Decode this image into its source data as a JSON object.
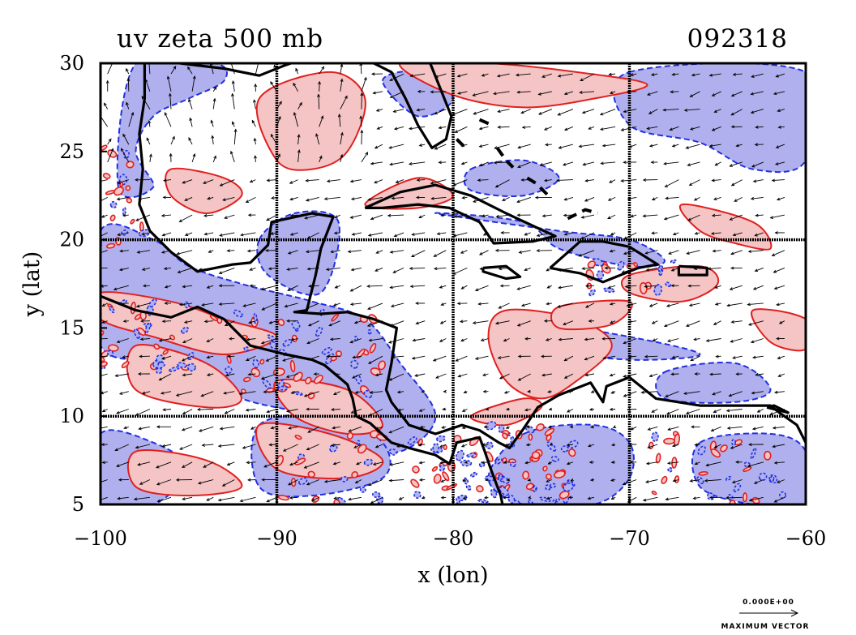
{
  "title_left": "uv zeta 500 mb",
  "title_right": "092318",
  "x_axis": {
    "label": "x (lon)",
    "range": [
      -100,
      -60
    ],
    "ticks": [
      {
        "value": -100,
        "label": "−100"
      },
      {
        "value": -90,
        "label": "−90"
      },
      {
        "value": -80,
        "label": "−80"
      },
      {
        "value": -70,
        "label": "−70"
      },
      {
        "value": -60,
        "label": "−60"
      }
    ]
  },
  "y_axis": {
    "label": "y (lat)",
    "range": [
      5,
      30
    ],
    "ticks": [
      {
        "value": 5,
        "label": "5"
      },
      {
        "value": 10,
        "label": "10"
      },
      {
        "value": 15,
        "label": "15"
      },
      {
        "value": 20,
        "label": "20"
      },
      {
        "value": 25,
        "label": "25"
      },
      {
        "value": 30,
        "label": "30"
      }
    ]
  },
  "grid_lines": {
    "lon": [
      -90,
      -80,
      -70
    ],
    "lat": [
      10,
      20
    ]
  },
  "legend": {
    "top_text": "0.000E+00",
    "bottom_text": "MAXIMUM VECTOR"
  },
  "colors": {
    "positive_fill": "#f5c4c4",
    "positive_line": "#e02020",
    "negative_fill": "#b0b0ee",
    "negative_line": "#2030e0",
    "coast": "#000000",
    "vector": "#000000"
  },
  "regions": {
    "negative": [
      [
        [
          -100,
          20.5
        ],
        [
          -97,
          20
        ],
        [
          -95,
          18.5
        ],
        [
          -92,
          17.5
        ],
        [
          -90,
          17
        ],
        [
          -88,
          16.5
        ],
        [
          -85,
          15.5
        ],
        [
          -83,
          13
        ],
        [
          -81,
          10
        ],
        [
          -83,
          8
        ],
        [
          -86,
          8.5
        ],
        [
          -88,
          10
        ],
        [
          -92,
          11
        ],
        [
          -96,
          13
        ],
        [
          -100,
          14
        ]
      ],
      [
        [
          -98,
          30
        ],
        [
          -93.5,
          30
        ],
        [
          -93,
          29
        ],
        [
          -95,
          28
        ],
        [
          -97,
          27
        ],
        [
          -98,
          25
        ],
        [
          -97,
          23
        ],
        [
          -99,
          23
        ]
      ],
      [
        [
          -91,
          20
        ],
        [
          -89,
          21.5
        ],
        [
          -86.5,
          21
        ],
        [
          -87.5,
          17
        ],
        [
          -90.5,
          18
        ]
      ],
      [
        [
          -70,
          29.5
        ],
        [
          -60,
          29.5
        ],
        [
          -60,
          24.5
        ],
        [
          -63,
          24
        ],
        [
          -66,
          25.5
        ],
        [
          -70,
          26.5
        ]
      ],
      [
        [
          -81,
          21.5
        ],
        [
          -76,
          21
        ],
        [
          -74,
          19.5
        ],
        [
          -70,
          18.5
        ],
        [
          -68,
          18.8
        ],
        [
          -70,
          20
        ],
        [
          -74,
          20.5
        ]
      ],
      [
        [
          -79,
          24
        ],
        [
          -76,
          24.5
        ],
        [
          -74,
          23.5
        ],
        [
          -76,
          22.5
        ],
        [
          -79,
          22.8
        ]
      ],
      [
        [
          -84,
          29
        ],
        [
          -82,
          29.5
        ],
        [
          -80,
          28
        ],
        [
          -82,
          27
        ]
      ],
      [
        [
          -100,
          9
        ],
        [
          -97,
          8.5
        ],
        [
          -95,
          7
        ],
        [
          -97,
          5
        ],
        [
          -100,
          5
        ]
      ],
      [
        [
          -91,
          9.5
        ],
        [
          -87,
          10
        ],
        [
          -84,
          8.5
        ],
        [
          -84,
          6.5
        ],
        [
          -88,
          5.5
        ],
        [
          -91,
          6
        ]
      ],
      [
        [
          -76,
          9
        ],
        [
          -72,
          9.5
        ],
        [
          -70,
          8.5
        ],
        [
          -70,
          6.5
        ],
        [
          -72,
          5
        ],
        [
          -76,
          5
        ],
        [
          -78,
          6.5
        ]
      ],
      [
        [
          -66,
          8.5
        ],
        [
          -62,
          9
        ],
        [
          -60,
          8
        ],
        [
          -60,
          5
        ],
        [
          -63,
          5
        ],
        [
          -66,
          6
        ]
      ],
      [
        [
          -68,
          12.5
        ],
        [
          -64,
          13
        ],
        [
          -62,
          11.5
        ],
        [
          -64,
          10.8
        ],
        [
          -68,
          11
        ]
      ],
      [
        [
          -74,
          15
        ],
        [
          -70,
          14.5
        ],
        [
          -66,
          13.5
        ],
        [
          -70,
          13.2
        ],
        [
          -74,
          13.8
        ]
      ]
    ],
    "positive": [
      [
        [
          -91,
          28
        ],
        [
          -87,
          29.5
        ],
        [
          -85,
          28
        ],
        [
          -86,
          25
        ],
        [
          -88,
          24
        ],
        [
          -90,
          24.5
        ]
      ],
      [
        [
          -83,
          30
        ],
        [
          -78,
          30
        ],
        [
          -73,
          29.5
        ],
        [
          -69,
          28.8
        ],
        [
          -72,
          28
        ],
        [
          -76,
          27.5
        ],
        [
          -80,
          28.2
        ]
      ],
      [
        [
          -77,
          16
        ],
        [
          -73,
          15.5
        ],
        [
          -71,
          14
        ],
        [
          -73,
          12
        ],
        [
          -75,
          11
        ],
        [
          -77,
          12
        ],
        [
          -78,
          14.5
        ]
      ],
      [
        [
          -74,
          16.2
        ],
        [
          -70,
          16.5
        ],
        [
          -71,
          15.2
        ],
        [
          -74,
          15
        ]
      ],
      [
        [
          -70,
          18
        ],
        [
          -66,
          18.5
        ],
        [
          -65,
          17.5
        ],
        [
          -67,
          16.5
        ],
        [
          -70,
          17
        ]
      ],
      [
        [
          -100,
          17
        ],
        [
          -96,
          16.5
        ],
        [
          -93,
          15.5
        ],
        [
          -90,
          14.5
        ],
        [
          -93,
          13.5
        ],
        [
          -97,
          14.5
        ],
        [
          -100,
          15.5
        ]
      ],
      [
        [
          -98,
          14
        ],
        [
          -94,
          13
        ],
        [
          -92,
          11
        ],
        [
          -94,
          10.5
        ],
        [
          -98,
          11.5
        ]
      ],
      [
        [
          -90,
          12
        ],
        [
          -86,
          11.5
        ],
        [
          -84,
          9.5
        ],
        [
          -86,
          9
        ],
        [
          -89,
          10
        ]
      ],
      [
        [
          -91,
          9.5
        ],
        [
          -87,
          9
        ],
        [
          -84,
          7.5
        ],
        [
          -86,
          6.5
        ],
        [
          -90,
          7
        ]
      ],
      [
        [
          -98,
          8
        ],
        [
          -94,
          7.5
        ],
        [
          -92,
          6
        ],
        [
          -95,
          5.5
        ],
        [
          -98,
          6
        ]
      ],
      [
        [
          -96,
          24
        ],
        [
          -93,
          23.5
        ],
        [
          -92,
          22.5
        ],
        [
          -94,
          21.5
        ],
        [
          -96,
          22.5
        ]
      ],
      [
        [
          -85,
          22
        ],
        [
          -82,
          23.5
        ],
        [
          -80,
          22.5
        ],
        [
          -82,
          21.8
        ]
      ],
      [
        [
          -67,
          22
        ],
        [
          -63,
          21
        ],
        [
          -62,
          19.5
        ],
        [
          -64,
          19.8
        ],
        [
          -66,
          20.5
        ]
      ],
      [
        [
          -63,
          16
        ],
        [
          -60,
          15.5
        ],
        [
          -60,
          13.8
        ],
        [
          -62,
          14.2
        ]
      ],
      [
        [
          -79,
          10
        ],
        [
          -76,
          11
        ],
        [
          -75,
          10.5
        ],
        [
          -77,
          9.5
        ]
      ]
    ],
    "coastlines": [
      [
        [
          -97.5,
          30
        ],
        [
          -97.5,
          28
        ],
        [
          -97.8,
          26
        ],
        [
          -97.6,
          24
        ],
        [
          -97.8,
          22
        ],
        [
          -97.2,
          20.5
        ],
        [
          -96,
          19.3
        ],
        [
          -94.5,
          18.2
        ],
        [
          -92.5,
          18.6
        ],
        [
          -91.5,
          18.7
        ],
        [
          -90.5,
          19.7
        ],
        [
          -90.3,
          21
        ],
        [
          -88,
          21.5
        ],
        [
          -86.8,
          21.3
        ],
        [
          -87.5,
          19.5
        ],
        [
          -87.8,
          18
        ],
        [
          -88.3,
          16
        ],
        [
          -89,
          15.9
        ],
        [
          -87.5,
          15.8
        ],
        [
          -86,
          15.9
        ],
        [
          -84.5,
          15.5
        ],
        [
          -83.2,
          15
        ],
        [
          -83.5,
          13
        ],
        [
          -83.8,
          11.5
        ],
        [
          -83.5,
          10.8
        ],
        [
          -82.5,
          9.5
        ],
        [
          -81,
          9
        ],
        [
          -79.5,
          9.5
        ],
        [
          -78.5,
          9.2
        ],
        [
          -77.4,
          8.5
        ],
        [
          -76.8,
          8.2
        ],
        [
          -76,
          9.3
        ],
        [
          -75.2,
          10.5
        ],
        [
          -74,
          11.2
        ],
        [
          -72.2,
          11.9
        ],
        [
          -71.5,
          10.8
        ],
        [
          -71.3,
          11.7
        ],
        [
          -70,
          12.2
        ],
        [
          -68.5,
          11
        ],
        [
          -66,
          10.6
        ],
        [
          -64,
          10.6
        ],
        [
          -62,
          10.6
        ],
        [
          -61.5,
          10.2
        ],
        [
          -60.5,
          9.5
        ],
        [
          -60,
          8.5
        ]
      ],
      [
        [
          -100,
          16.8
        ],
        [
          -98,
          16
        ],
        [
          -96,
          15.6
        ],
        [
          -94.5,
          16.2
        ],
        [
          -93,
          15.5
        ],
        [
          -91.5,
          14
        ],
        [
          -89.5,
          13.5
        ],
        [
          -88,
          13.2
        ],
        [
          -87.3,
          12.9
        ],
        [
          -86,
          11.8
        ],
        [
          -85.7,
          11
        ],
        [
          -85.5,
          10
        ],
        [
          -84.7,
          9.6
        ],
        [
          -83.5,
          8.5
        ],
        [
          -82.5,
          8.2
        ],
        [
          -81,
          7.8
        ],
        [
          -80.2,
          7.3
        ],
        [
          -79.8,
          8.5
        ],
        [
          -78.5,
          8.8
        ],
        [
          -78.2,
          8
        ],
        [
          -77.9,
          7.1
        ],
        [
          -77.3,
          5.5
        ],
        [
          -77.2,
          5
        ]
      ],
      [
        [
          -95.5,
          30
        ],
        [
          -93,
          29.7
        ],
        [
          -91,
          29.3
        ],
        [
          -89.5,
          29.9
        ],
        [
          -89.2,
          30
        ]
      ],
      [
        [
          -84.5,
          30
        ],
        [
          -83.5,
          29.5
        ],
        [
          -82.7,
          28
        ],
        [
          -82,
          26.5
        ],
        [
          -81.2,
          25.2
        ],
        [
          -80.4,
          25.7
        ],
        [
          -80.1,
          27
        ],
        [
          -80.7,
          28.5
        ],
        [
          -81.3,
          30
        ]
      ],
      [
        [
          -85,
          21.8
        ],
        [
          -83,
          22.7
        ],
        [
          -81,
          23.1
        ],
        [
          -79,
          22.5
        ],
        [
          -77,
          21.5
        ],
        [
          -75.5,
          20.8
        ],
        [
          -74.2,
          20.2
        ],
        [
          -75.5,
          19.9
        ],
        [
          -77.7,
          19.8
        ],
        [
          -78.5,
          21
        ],
        [
          -80.2,
          21.8
        ],
        [
          -82,
          22
        ],
        [
          -84,
          21.8
        ],
        [
          -85,
          21.8
        ]
      ],
      [
        [
          -78.3,
          18.4
        ],
        [
          -77,
          18.5
        ],
        [
          -76.2,
          17.9
        ],
        [
          -77,
          17.8
        ],
        [
          -78.3,
          18.2
        ],
        [
          -78.3,
          18.4
        ]
      ],
      [
        [
          -74.5,
          18.4
        ],
        [
          -72.8,
          19.9
        ],
        [
          -71.5,
          19.9
        ],
        [
          -70,
          19.6
        ],
        [
          -68.4,
          18.6
        ],
        [
          -69.5,
          18.4
        ],
        [
          -71.5,
          17.6
        ],
        [
          -72.8,
          18.1
        ],
        [
          -74.5,
          18.4
        ]
      ],
      [
        [
          -67.2,
          18.5
        ],
        [
          -65.6,
          18.4
        ],
        [
          -65.6,
          18
        ],
        [
          -67.2,
          18
        ],
        [
          -67.2,
          18.5
        ]
      ],
      [
        [
          -62.2,
          10.5
        ],
        [
          -61,
          10.2
        ],
        [
          -61.8,
          10.6
        ],
        [
          -62.2,
          10.5
        ]
      ]
    ],
    "islands_dashed": [
      [
        [
          -78.5,
          26.8
        ],
        [
          -77.8,
          26.5
        ]
      ],
      [
        [
          -77.5,
          25.2
        ],
        [
          -77,
          24.5
        ],
        [
          -76.6,
          24.1
        ]
      ],
      [
        [
          -75.8,
          23.5
        ],
        [
          -75.3,
          23.2
        ],
        [
          -74.6,
          22.5
        ]
      ],
      [
        [
          -73.5,
          21.2
        ],
        [
          -72.5,
          21.7
        ],
        [
          -71.8,
          21.5
        ]
      ],
      [
        [
          -79.8,
          25.7
        ],
        [
          -79.3,
          25.2
        ]
      ]
    ]
  },
  "vector_field": {
    "lon_step": 1.2,
    "lat_step": 1.0
  }
}
